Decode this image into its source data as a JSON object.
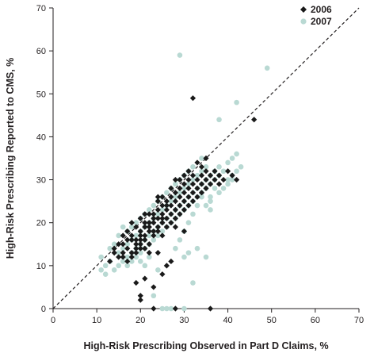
{
  "chart_data": {
    "type": "scatter",
    "xlabel": "High-Risk Prescribing Observed in Part D Claims, %",
    "ylabel": "High-Risk Prescribing Reported to CMS, %",
    "xlim": [
      0,
      70
    ],
    "ylim": [
      0,
      70
    ],
    "xticks": [
      "0",
      "10",
      "20",
      "30",
      "40",
      "50",
      "60",
      "70"
    ],
    "yticks": [
      "0",
      "10",
      "20",
      "30",
      "40",
      "50",
      "60",
      "70"
    ],
    "grid": false,
    "legend_position": "top-right",
    "reference_line": {
      "style": "dashed",
      "from": [
        0,
        0
      ],
      "to": [
        70,
        70
      ]
    },
    "series": [
      {
        "name": "2006",
        "marker": "diamond",
        "color": "#1a1a1a",
        "points": [
          [
            13,
            11
          ],
          [
            14,
            13
          ],
          [
            15,
            12
          ],
          [
            16,
            13
          ],
          [
            16,
            15
          ],
          [
            17,
            18
          ],
          [
            17,
            14
          ],
          [
            18,
            12
          ],
          [
            18,
            16
          ],
          [
            18,
            17
          ],
          [
            19,
            14
          ],
          [
            19,
            15
          ],
          [
            19,
            16
          ],
          [
            19,
            13
          ],
          [
            20,
            15
          ],
          [
            20,
            16
          ],
          [
            20,
            18
          ],
          [
            20,
            14
          ],
          [
            20,
            17
          ],
          [
            21,
            14
          ],
          [
            21,
            16
          ],
          [
            21,
            19
          ],
          [
            21,
            17
          ],
          [
            21,
            20
          ],
          [
            22,
            15
          ],
          [
            22,
            18
          ],
          [
            22,
            20
          ],
          [
            22,
            19
          ],
          [
            22,
            13
          ],
          [
            23,
            17
          ],
          [
            23,
            20
          ],
          [
            23,
            21
          ],
          [
            23,
            18
          ],
          [
            23,
            22
          ],
          [
            24,
            18
          ],
          [
            24,
            21
          ],
          [
            24,
            23
          ],
          [
            24,
            19
          ],
          [
            24,
            25
          ],
          [
            25,
            20
          ],
          [
            25,
            22
          ],
          [
            25,
            24
          ],
          [
            25,
            17
          ],
          [
            25,
            21
          ],
          [
            26,
            21
          ],
          [
            26,
            23
          ],
          [
            26,
            25
          ],
          [
            26,
            19
          ],
          [
            27,
            22
          ],
          [
            27,
            24
          ],
          [
            27,
            26
          ],
          [
            27,
            20
          ],
          [
            28,
            23
          ],
          [
            28,
            25
          ],
          [
            28,
            27
          ],
          [
            28,
            21
          ],
          [
            28,
            19
          ],
          [
            29,
            24
          ],
          [
            29,
            26
          ],
          [
            29,
            28
          ],
          [
            29,
            22
          ],
          [
            30,
            25
          ],
          [
            30,
            27
          ],
          [
            30,
            29
          ],
          [
            30,
            23
          ],
          [
            30,
            18
          ],
          [
            31,
            26
          ],
          [
            31,
            28
          ],
          [
            31,
            30
          ],
          [
            31,
            24
          ],
          [
            32,
            27
          ],
          [
            32,
            29
          ],
          [
            32,
            31
          ],
          [
            32,
            25
          ],
          [
            33,
            28
          ],
          [
            33,
            30
          ],
          [
            33,
            26
          ],
          [
            34,
            29
          ],
          [
            34,
            31
          ],
          [
            34,
            27
          ],
          [
            35,
            30
          ],
          [
            35,
            28
          ],
          [
            35,
            32
          ],
          [
            36,
            29
          ],
          [
            36,
            31
          ],
          [
            37,
            30
          ],
          [
            37,
            32
          ],
          [
            38,
            29
          ],
          [
            38,
            31
          ],
          [
            39,
            30
          ],
          [
            40,
            32
          ],
          [
            41,
            31
          ],
          [
            42,
            30
          ],
          [
            46,
            44
          ],
          [
            32,
            49
          ],
          [
            36,
            0
          ],
          [
            23,
            0
          ],
          [
            28,
            0
          ],
          [
            19,
            6
          ],
          [
            20,
            3
          ],
          [
            20,
            2
          ],
          [
            21,
            7
          ],
          [
            23,
            5
          ],
          [
            24,
            13
          ],
          [
            25,
            8
          ],
          [
            26,
            10
          ],
          [
            27,
            11
          ],
          [
            18,
            20
          ],
          [
            17,
            16
          ],
          [
            16,
            17
          ],
          [
            15,
            15
          ],
          [
            14,
            14
          ],
          [
            19,
            19
          ],
          [
            22,
            22
          ],
          [
            24,
            26
          ],
          [
            26,
            24
          ],
          [
            28,
            30
          ],
          [
            30,
            31
          ],
          [
            33,
            34
          ],
          [
            35,
            35
          ],
          [
            34,
            33
          ],
          [
            31,
            32
          ],
          [
            29,
            30
          ],
          [
            27,
            28
          ],
          [
            25,
            26
          ],
          [
            20,
            21
          ],
          [
            21,
            22
          ],
          [
            16,
            12
          ],
          [
            17,
            11
          ],
          [
            18,
            13
          ]
        ]
      },
      {
        "name": "2007",
        "marker": "circle",
        "color": "#b9d9d3",
        "points": [
          [
            11,
            12
          ],
          [
            11,
            9
          ],
          [
            12,
            10
          ],
          [
            12,
            8
          ],
          [
            13,
            14
          ],
          [
            13,
            11
          ],
          [
            14,
            9
          ],
          [
            14,
            15
          ],
          [
            15,
            10
          ],
          [
            15,
            13
          ],
          [
            15,
            17
          ],
          [
            16,
            11
          ],
          [
            16,
            14
          ],
          [
            16,
            19
          ],
          [
            17,
            12
          ],
          [
            17,
            15
          ],
          [
            17,
            18
          ],
          [
            17,
            10
          ],
          [
            18,
            13
          ],
          [
            18,
            16
          ],
          [
            18,
            19
          ],
          [
            18,
            11
          ],
          [
            19,
            14
          ],
          [
            19,
            17
          ],
          [
            19,
            20
          ],
          [
            19,
            12
          ],
          [
            20,
            15
          ],
          [
            20,
            18
          ],
          [
            20,
            21
          ],
          [
            20,
            13
          ],
          [
            21,
            16
          ],
          [
            21,
            19
          ],
          [
            21,
            22
          ],
          [
            21,
            14
          ],
          [
            22,
            17
          ],
          [
            22,
            20
          ],
          [
            22,
            23
          ],
          [
            22,
            15
          ],
          [
            23,
            18
          ],
          [
            23,
            21
          ],
          [
            23,
            24
          ],
          [
            23,
            16
          ],
          [
            24,
            19
          ],
          [
            24,
            22
          ],
          [
            24,
            25
          ],
          [
            24,
            17
          ],
          [
            25,
            20
          ],
          [
            25,
            23
          ],
          [
            25,
            26
          ],
          [
            25,
            18
          ],
          [
            26,
            21
          ],
          [
            26,
            24
          ],
          [
            26,
            27
          ],
          [
            26,
            19
          ],
          [
            27,
            22
          ],
          [
            27,
            25
          ],
          [
            27,
            28
          ],
          [
            27,
            20
          ],
          [
            28,
            23
          ],
          [
            28,
            26
          ],
          [
            28,
            29
          ],
          [
            28,
            21
          ],
          [
            29,
            24
          ],
          [
            29,
            27
          ],
          [
            29,
            30
          ],
          [
            29,
            22
          ],
          [
            30,
            25
          ],
          [
            30,
            28
          ],
          [
            30,
            31
          ],
          [
            30,
            23
          ],
          [
            31,
            26
          ],
          [
            31,
            29
          ],
          [
            31,
            32
          ],
          [
            31,
            24
          ],
          [
            32,
            27
          ],
          [
            32,
            30
          ],
          [
            32,
            33
          ],
          [
            32,
            25
          ],
          [
            33,
            28
          ],
          [
            33,
            31
          ],
          [
            33,
            26
          ],
          [
            34,
            29
          ],
          [
            34,
            32
          ],
          [
            34,
            27
          ],
          [
            35,
            30
          ],
          [
            35,
            33
          ],
          [
            35,
            28
          ],
          [
            36,
            31
          ],
          [
            36,
            29
          ],
          [
            37,
            30
          ],
          [
            37,
            32
          ],
          [
            38,
            31
          ],
          [
            38,
            33
          ],
          [
            39,
            32
          ],
          [
            40,
            34
          ],
          [
            40,
            30
          ],
          [
            41,
            35
          ],
          [
            41,
            31
          ],
          [
            42,
            36
          ],
          [
            42,
            32
          ],
          [
            43,
            33
          ],
          [
            29,
            59
          ],
          [
            49,
            56
          ],
          [
            42,
            48
          ],
          [
            38,
            44
          ],
          [
            34,
            35
          ],
          [
            36,
            25
          ],
          [
            36,
            23
          ],
          [
            30,
            12
          ],
          [
            31,
            13
          ],
          [
            33,
            14
          ],
          [
            35,
            12
          ],
          [
            25,
            0
          ],
          [
            26,
            0
          ],
          [
            27,
            0
          ],
          [
            30,
            0
          ],
          [
            32,
            6
          ],
          [
            24,
            9
          ],
          [
            23,
            3
          ],
          [
            20,
            11
          ],
          [
            21,
            10
          ],
          [
            22,
            12
          ],
          [
            28,
            14
          ],
          [
            29,
            16
          ],
          [
            30,
            18
          ],
          [
            31,
            20
          ],
          [
            32,
            22
          ],
          [
            33,
            24
          ],
          [
            34,
            26
          ],
          [
            35,
            24
          ],
          [
            36,
            26
          ],
          [
            37,
            28
          ],
          [
            38,
            27
          ],
          [
            39,
            28
          ],
          [
            40,
            29
          ],
          [
            41,
            30
          ]
        ]
      }
    ]
  }
}
